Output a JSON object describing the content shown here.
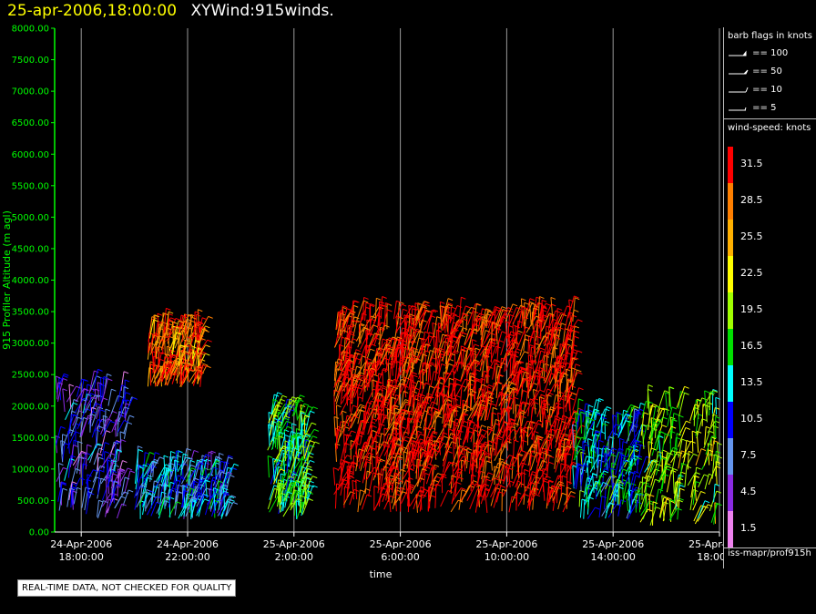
{
  "header": {
    "datetime": "25-apr-2006,18:00:00",
    "product": "XYWind:915winds."
  },
  "legend": {
    "barb_title": "barb flags in knots",
    "barbs": [
      {
        "label": "== 100",
        "value": 100
      },
      {
        "label": "== 50",
        "value": 50
      },
      {
        "label": "== 10",
        "value": 10
      },
      {
        "label": "== 5",
        "value": 5
      }
    ],
    "speed_title": "wind-speed: knots",
    "scale": [
      {
        "label": "31.5",
        "color": "#ff0000"
      },
      {
        "label": "28.5",
        "color": "#ff7f00"
      },
      {
        "label": "25.5",
        "color": "#ffb000"
      },
      {
        "label": "22.5",
        "color": "#ffff00"
      },
      {
        "label": "19.5",
        "color": "#a0ff00"
      },
      {
        "label": "16.5",
        "color": "#00e000"
      },
      {
        "label": "13.5",
        "color": "#00ffff"
      },
      {
        "label": "10.5",
        "color": "#0000ff"
      },
      {
        "label": "7.5",
        "color": "#6495ed"
      },
      {
        "label": "4.5",
        "color": "#8a2be2"
      },
      {
        "label": "1.5",
        "color": "#ee82ee"
      }
    ],
    "source": "iss-mapr/prof915h"
  },
  "disclaimer": "REAL-TIME DATA, NOT CHECKED FOR QUALITY",
  "colors": {
    "axis": "#00ff00",
    "grid": "#999999",
    "title_date": "#ffff00"
  },
  "chart_data": {
    "type": "scatter",
    "title": "XYWind:915winds.",
    "xlabel": "time",
    "ylabel": "915 Profiler Altitude (m agl)",
    "ylim": [
      0,
      8000
    ],
    "y_ticks": [
      "0.00",
      "500.00",
      "1000.00",
      "1500.00",
      "2000.00",
      "2500.00",
      "3000.00",
      "3500.00",
      "4000.00",
      "4500.00",
      "5000.00",
      "5500.00",
      "6000.00",
      "6500.00",
      "7000.00",
      "7500.00",
      "8000.00"
    ],
    "x_start": "24-Apr-2006 17:00:00",
    "x_end": "25-Apr-2006 18:00:00",
    "x_ticks": [
      {
        "date": "24-Apr-2006",
        "time": "18:00:00"
      },
      {
        "date": "24-Apr-2006",
        "time": "22:00:00"
      },
      {
        "date": "25-Apr-2006",
        "time": "2:00:00"
      },
      {
        "date": "25-Apr-2006",
        "time": "6:00:00"
      },
      {
        "date": "25-Apr-2006",
        "time": "10:00:00"
      },
      {
        "date": "25-Apr-2006",
        "time": "14:00:00"
      },
      {
        "date": "25-Apr-2006",
        "time": "18:00:00"
      }
    ],
    "grid": "vertical",
    "legend_position": "right",
    "clusters": [
      {
        "t_start": "24-Apr-2006 17:00",
        "t_end": "24-Apr-2006 19:40",
        "alt_min": 200,
        "alt_max": 2300,
        "speed": "7.5"
      },
      {
        "t_start": "24-Apr-2006 20:30",
        "t_end": "24-Apr-2006 22:30",
        "alt_min": 2300,
        "alt_max": 3200,
        "speed": "28.5"
      },
      {
        "t_start": "24-Apr-2006 20:00",
        "t_end": "24-Apr-2006 23:30",
        "alt_min": 200,
        "alt_max": 1000,
        "speed": "10.5"
      },
      {
        "t_start": "25-Apr-2006 01:00",
        "t_end": "25-Apr-2006 02:30",
        "alt_min": 200,
        "alt_max": 1900,
        "speed": "16.5"
      },
      {
        "t_start": "25-Apr-2006 03:30",
        "t_end": "25-Apr-2006 12:30",
        "alt_min": 300,
        "alt_max": 3400,
        "speed": "31.5"
      },
      {
        "t_start": "25-Apr-2006 12:30",
        "t_end": "25-Apr-2006 15:00",
        "alt_min": 200,
        "alt_max": 1800,
        "speed": "13.5"
      },
      {
        "t_start": "25-Apr-2006 15:00",
        "t_end": "25-Apr-2006 18:00",
        "alt_min": 100,
        "alt_max": 2000,
        "speed": "19.5"
      }
    ]
  }
}
